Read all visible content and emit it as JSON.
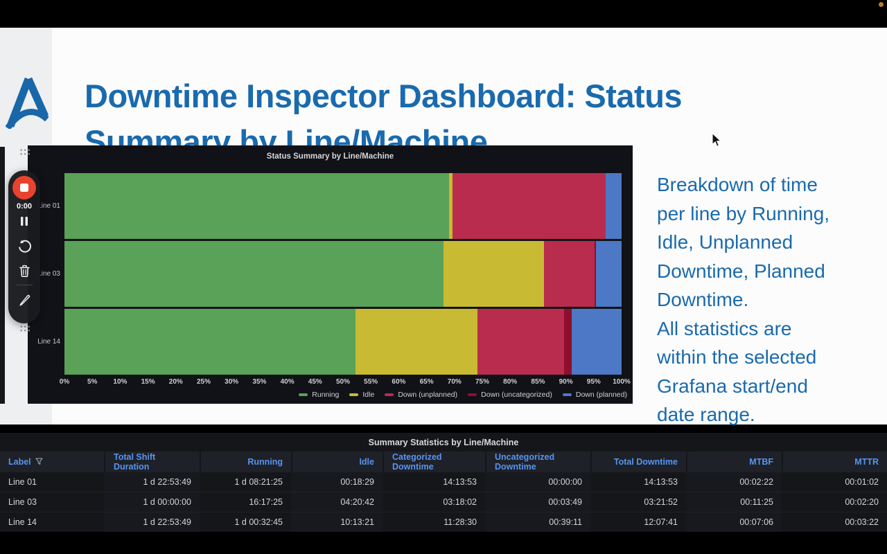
{
  "window": {
    "recording_indicator_color": "#bd7b2d"
  },
  "header": {
    "title_lines": [
      "Downtime Inspector Dashboard: Status",
      "Summary by Line/Machine"
    ],
    "title_color": "#1a6aad"
  },
  "logo": {
    "color": "#1966a8"
  },
  "recorder": {
    "timer": "0:00",
    "record_color": "#e8432e"
  },
  "side_note": {
    "text": "Breakdown of time\nper line by Running,\nIdle, Unplanned\nDowntime, Planned\nDowntime.\nAll statistics are\nwithin the selected\nGrafana start/end\ndate range."
  },
  "chart_data": [
    {
      "type": "bar",
      "stacked": true,
      "orientation": "horizontal",
      "unit": "percent",
      "title": "Status Summary by Line/Machine",
      "categories": [
        "Line 01",
        "Line 03",
        "Line 14"
      ],
      "series": [
        {
          "name": "Running",
          "color": "#59a257",
          "values": [
            69.0,
            68.0,
            52.3
          ]
        },
        {
          "name": "Idle",
          "color": "#c9ba33",
          "values": [
            0.7,
            18.1,
            21.8
          ]
        },
        {
          "name": "Down (unplanned)",
          "color": "#b92c4e",
          "values": [
            27.5,
            9.0,
            15.6
          ]
        },
        {
          "name": "Down (uncategorized)",
          "color": "#8e0e2e",
          "values": [
            0.0,
            0.3,
            1.4
          ]
        },
        {
          "name": "Down (planned)",
          "color": "#4c78c5",
          "values": [
            2.8,
            4.6,
            8.9
          ]
        }
      ],
      "x_ticks": [
        "0%",
        "5%",
        "10%",
        "15%",
        "20%",
        "25%",
        "30%",
        "35%",
        "40%",
        "45%",
        "50%",
        "55%",
        "60%",
        "65%",
        "70%",
        "75%",
        "80%",
        "85%",
        "90%",
        "95%",
        "100%"
      ],
      "xlim": [
        0,
        100
      ],
      "grid": false,
      "legend_position": "bottom-right"
    },
    {
      "type": "table",
      "title": "Summary Statistics by Line/Machine",
      "columns": [
        "Label",
        "Total Shift Duration",
        "Running",
        "Idle",
        "Categorized Downtime",
        "Uncategorized Downtime",
        "Total Downtime",
        "MTBF",
        "MTTR"
      ],
      "rows": [
        [
          "Line 01",
          "1 d 22:53:49",
          "1 d 08:21:25",
          "00:18:29",
          "14:13:53",
          "00:00:00",
          "14:13:53",
          "00:02:22",
          "00:01:02"
        ],
        [
          "Line 03",
          "1 d 00:00:00",
          "16:17:25",
          "04:20:42",
          "03:18:02",
          "00:03:49",
          "03:21:52",
          "00:11:25",
          "00:02:20"
        ],
        [
          "Line 14",
          "1 d 22:53:49",
          "1 d 00:32:45",
          "10:13:21",
          "11:28:30",
          "00:39:11",
          "12:07:41",
          "00:07:06",
          "00:03:22"
        ]
      ]
    }
  ]
}
